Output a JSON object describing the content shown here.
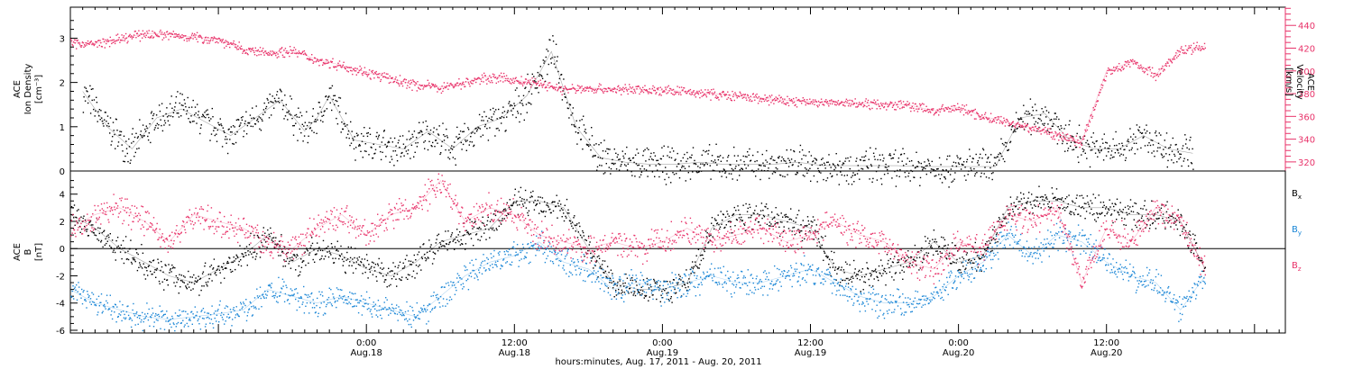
{
  "chart_data": [
    {
      "type": "scatter",
      "panel": "top",
      "ylabel_left": [
        "ACE",
        "Ion Density",
        "[cm⁻³]"
      ],
      "ylabel_right": [
        "ACE",
        "Velocity",
        "[km/s]"
      ],
      "left_axis": {
        "ylim": [
          0,
          3.7
        ],
        "ticks": [
          0,
          1,
          2,
          3
        ],
        "tick_labels": [
          "0",
          "1",
          "2",
          "3"
        ],
        "color": "#000000"
      },
      "right_axis": {
        "ylim": [
          312,
          456
        ],
        "ticks": [
          320,
          340,
          360,
          380,
          400,
          420,
          440
        ],
        "tick_labels": [
          "320",
          "340",
          "360",
          "380",
          "400",
          "420",
          "440"
        ],
        "color": "#e8336a"
      },
      "series": [
        {
          "axis": "left",
          "color": "#000000",
          "x": [
            1,
            3,
            5,
            7,
            9,
            11,
            13,
            15,
            17,
            19,
            20,
            21,
            23,
            25,
            27,
            29,
            31,
            33,
            35,
            37,
            39,
            41,
            43,
            45,
            47,
            49,
            51,
            53,
            55,
            57,
            59,
            61,
            63,
            65,
            67,
            69,
            71,
            73,
            75,
            77,
            79,
            81,
            83,
            85,
            87,
            89,
            91
          ],
          "y": [
            1.8,
            1.0,
            0.5,
            1.2,
            1.4,
            1.1,
            0.8,
            1.2,
            1.6,
            0.9,
            1.2,
            1.7,
            0.7,
            0.6,
            0.5,
            0.9,
            0.5,
            1.0,
            1.2,
            1.7,
            2.7,
            1.0,
            0.3,
            0.2,
            0.15,
            0.15,
            0.2,
            0.15,
            0.15,
            0.15,
            0.2,
            0.12,
            0.12,
            0.12,
            0.12,
            0.1,
            0.1,
            0.1,
            0.1,
            1.2,
            1.3,
            0.7,
            0.5,
            0.5,
            0.8,
            0.5,
            0.4
          ]
        },
        {
          "axis": "right",
          "color": "#e8336a",
          "x": [
            0,
            2,
            4,
            6,
            8,
            10,
            12,
            14,
            16,
            18,
            20,
            22,
            24,
            26,
            28,
            30,
            32,
            34,
            36,
            38,
            40,
            42,
            44,
            46,
            48,
            50,
            52,
            54,
            56,
            58,
            60,
            62,
            64,
            66,
            68,
            70,
            72,
            74,
            76,
            78,
            80,
            82,
            84,
            86,
            88,
            90,
            92
          ],
          "y": [
            425,
            424,
            428,
            433,
            432,
            430,
            428,
            419,
            416,
            418,
            410,
            405,
            399,
            393,
            388,
            386,
            390,
            395,
            392,
            389,
            384,
            385,
            384,
            384,
            383,
            382,
            380,
            378,
            376,
            374,
            373,
            372,
            372,
            371,
            370,
            365,
            368,
            360,
            355,
            350,
            344,
            338,
            400,
            408,
            397,
            418,
            422
          ]
        }
      ]
    },
    {
      "type": "scatter",
      "panel": "bottom",
      "ylabel": [
        "ACE",
        "B",
        "[nT]"
      ],
      "ylim": [
        -6.2,
        5.7
      ],
      "ticks": [
        -6,
        -4,
        -2,
        0,
        2,
        4
      ],
      "tick_labels": [
        "-6",
        "-4",
        "-2",
        "0",
        "2",
        "4"
      ],
      "legend": [
        {
          "label": "B",
          "sub": "x",
          "color": "#000000"
        },
        {
          "label": "B",
          "sub": "y",
          "color": "#1a86d6"
        },
        {
          "label": "B",
          "sub": "z",
          "color": "#e8336a"
        }
      ],
      "legend_placement": "right",
      "series": [
        {
          "name": "Bx",
          "color": "#000000",
          "x": [
            0,
            2,
            4,
            6,
            8,
            10,
            12,
            14,
            16,
            18,
            20,
            22,
            24,
            26,
            28,
            30,
            32,
            34,
            36,
            38,
            40,
            42,
            44,
            46,
            48,
            50,
            52,
            54,
            56,
            58,
            60,
            62,
            64,
            66,
            68,
            70,
            72,
            74,
            76,
            78,
            80,
            82,
            84,
            86,
            88,
            90,
            92
          ],
          "y": [
            2.5,
            1.5,
            0.0,
            -1.0,
            -2.0,
            -2.5,
            -1.5,
            -0.5,
            1.0,
            -1.0,
            0.0,
            -0.5,
            -1.5,
            -2.0,
            -1.0,
            0.5,
            1.0,
            1.5,
            3.5,
            3.5,
            3.0,
            0.0,
            -2.5,
            -3.0,
            -3.0,
            -2.5,
            1.5,
            2.5,
            2.5,
            2.0,
            1.5,
            -1.5,
            -2.0,
            -1.5,
            -1.0,
            0.5,
            -1.0,
            -0.5,
            3.0,
            3.5,
            3.5,
            3.0,
            3.0,
            2.5,
            2.5,
            2.0,
            -1.5
          ]
        },
        {
          "name": "By",
          "color": "#1a86d6",
          "x": [
            0,
            2,
            4,
            6,
            8,
            10,
            12,
            14,
            16,
            18,
            20,
            22,
            24,
            26,
            28,
            30,
            32,
            34,
            36,
            38,
            40,
            42,
            44,
            46,
            48,
            50,
            52,
            54,
            56,
            58,
            60,
            62,
            64,
            66,
            68,
            70,
            72,
            74,
            76,
            78,
            80,
            82,
            84,
            86,
            88,
            90,
            92
          ],
          "y": [
            -3.0,
            -4.0,
            -4.5,
            -5.0,
            -5.2,
            -5.0,
            -4.8,
            -4.5,
            -3.0,
            -3.5,
            -4.0,
            -3.5,
            -4.0,
            -4.5,
            -5.0,
            -3.5,
            -2.0,
            -1.0,
            -0.5,
            0.5,
            -1.0,
            -1.5,
            -3.0,
            -2.5,
            -3.0,
            -2.5,
            -2.0,
            -2.5,
            -2.5,
            -2.0,
            -1.5,
            -2.5,
            -3.5,
            -4.0,
            -4.0,
            -3.5,
            -2.0,
            -1.0,
            1.0,
            -0.5,
            1.0,
            0.5,
            -1.0,
            -2.0,
            -2.5,
            -4.5,
            -2.0
          ]
        },
        {
          "name": "Bz",
          "color": "#e8336a",
          "x": [
            0,
            2,
            4,
            6,
            8,
            10,
            12,
            14,
            16,
            18,
            20,
            22,
            24,
            26,
            28,
            30,
            32,
            34,
            36,
            38,
            40,
            42,
            44,
            46,
            48,
            50,
            52,
            54,
            56,
            58,
            60,
            62,
            64,
            66,
            68,
            70,
            72,
            74,
            76,
            78,
            80,
            82,
            84,
            86,
            88,
            90,
            92
          ],
          "y": [
            1.5,
            2.5,
            3.0,
            2.0,
            0.5,
            2.5,
            2.0,
            1.5,
            0.5,
            0.0,
            1.5,
            2.5,
            1.0,
            2.5,
            3.0,
            5.0,
            2.0,
            3.0,
            2.5,
            1.0,
            0.5,
            0.0,
            0.5,
            0.0,
            0.5,
            1.5,
            0.5,
            1.0,
            1.5,
            0.5,
            1.0,
            2.0,
            1.0,
            0.5,
            -1.0,
            -1.5,
            0.5,
            0.0,
            2.5,
            2.0,
            3.0,
            -2.5,
            1.5,
            0.5,
            3.0,
            2.0,
            -1.5
          ]
        }
      ]
    }
  ],
  "x_axis": {
    "xlim": [
      0,
      98.5
    ],
    "tick_labels": [
      {
        "x": 24,
        "time": "0:00",
        "date": "Aug.18"
      },
      {
        "x": 36,
        "time": "12:00",
        "date": "Aug.18"
      },
      {
        "x": 48,
        "time": "0:00",
        "date": "Aug.19"
      },
      {
        "x": 60,
        "time": "12:00",
        "date": "Aug.19"
      },
      {
        "x": 72,
        "time": "0:00",
        "date": "Aug.20"
      },
      {
        "x": 84,
        "time": "12:00",
        "date": "Aug.20"
      }
    ],
    "xlabel": "hours:minutes, Aug. 17, 2011 - Aug. 20, 2011"
  }
}
